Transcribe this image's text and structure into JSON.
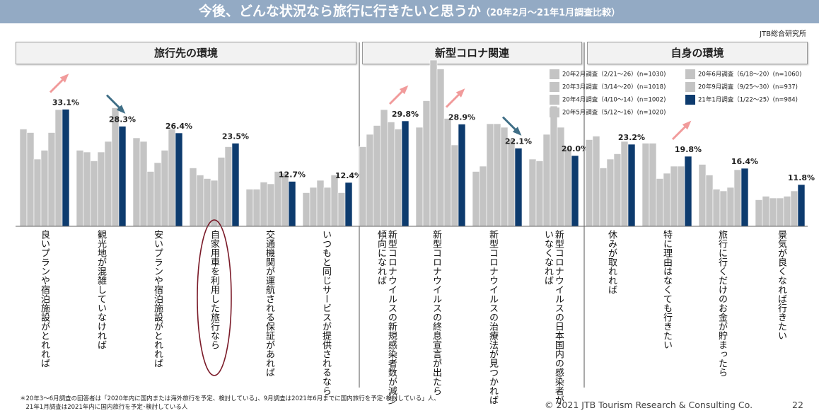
{
  "header": {
    "title": "今後、どんな状況なら旅行に行きたいと思うか",
    "subtitle": "（20年2月～21年1月調査比較）",
    "source": "JTB総合研究所"
  },
  "sections": [
    "旅行先の環境",
    "新型コロナ関連",
    "自身の環境"
  ],
  "legend": [
    {
      "label": "20年2月調査（2/21～26）(n=1030)",
      "color": "#c4c4c4"
    },
    {
      "label": "20年3月調査（3/14～20）(n=1018)",
      "color": "#c4c4c4"
    },
    {
      "label": "20年4月調査（4/10～14）(n=1002)",
      "color": "#c4c4c4"
    },
    {
      "label": "20年5月調査（5/12～16）(n=1020)",
      "color": "#c4c4c4"
    },
    {
      "label": "20年6月調査（6/18～20）(n=1060)",
      "color": "#c4c4c4"
    },
    {
      "label": "20年9月調査（9/25～30）(n=937)",
      "color": "#c4c4c4"
    },
    {
      "label": "21年1月調査（1/22～25）(n=984)",
      "color": "#0d3b6e"
    }
  ],
  "chart_data": {
    "type": "bar",
    "ylim": [
      0,
      50
    ],
    "series_names": [
      "20年2月調査（2/21～26）(n=1030)",
      "20年3月調査（3/14～20）(n=1018)",
      "20年4月調査（4/10～14）(n=1002)",
      "20年5月調査（5/12～16）(n=1020)",
      "20年6月調査（6/18～20）(n=1060)",
      "20年9月調査（9/25～30）(n=937)",
      "21年1月調査（1/22～25）(n=984)"
    ],
    "groups": [
      {
        "label": "良いプランや宿泊施設がとれれば",
        "values": [
          27.5,
          26.5,
          19.0,
          21.5,
          26.5,
          33.0,
          33.1
        ],
        "value_label": "33.1%",
        "arrow": "up"
      },
      {
        "label": "観光地が混雑していなければ",
        "values": [
          21.5,
          21.0,
          18.5,
          21.0,
          24.0,
          33.5,
          28.3
        ],
        "value_label": "28.3%",
        "arrow": "down"
      },
      {
        "label": "安いプランや宿泊施設がとれれば",
        "values": [
          25.0,
          24.0,
          15.5,
          18.0,
          21.5,
          27.5,
          26.4
        ],
        "value_label": "26.4%",
        "arrow": "none"
      },
      {
        "label": "自家用車を利用した旅行なら",
        "values": [
          16.5,
          14.5,
          13.5,
          13.0,
          19.5,
          22.5,
          23.5
        ],
        "value_label": "23.5%",
        "arrow": "none",
        "circled": true
      },
      {
        "label": "交通機関が運航される保証があれば",
        "values": [
          10.5,
          10.5,
          12.5,
          12.0,
          15.5,
          15.0,
          12.7
        ],
        "value_label": "12.7%",
        "arrow": "none"
      },
      {
        "label": "いつもと同じサービスが提供されるなら",
        "values": [
          9.5,
          11.0,
          13.0,
          11.0,
          14.5,
          9.5,
          12.4
        ],
        "value_label": "12.4%",
        "arrow": "none"
      },
      {
        "label": "新型コロナウイルスの新規感染者数が減少傾向になれば",
        "values": [
          22.5,
          26.0,
          28.5,
          33.0,
          29.5,
          27.5,
          29.8
        ],
        "value_label": "29.8%",
        "arrow": "up"
      },
      {
        "label": "新型コロナウイルスの終息宣言が出たら",
        "values": [
          28.0,
          35.5,
          47.0,
          44.5,
          30.5,
          23.0,
          28.9
        ],
        "value_label": "28.9%",
        "arrow": "up"
      },
      {
        "label": "新型コロナウイルスの治療法が見つかれば",
        "values": [
          15.5,
          17.0,
          29.0,
          29.0,
          28.0,
          24.5,
          22.1
        ],
        "value_label": "22.1%",
        "arrow": "down"
      },
      {
        "label": "新型コロナウイルスの日本国内の感染者がいなくなれば",
        "values": [
          19.0,
          18.5,
          26.0,
          34.0,
          28.0,
          22.0,
          20.0
        ],
        "value_label": "20.0%",
        "arrow": "none"
      },
      {
        "label": "休みが取れれば",
        "values": [
          24.5,
          25.5,
          16.5,
          19.0,
          20.5,
          24.0,
          23.2
        ],
        "value_label": "23.2%",
        "arrow": "none"
      },
      {
        "label": "特に理由はなくても行きたい",
        "values": [
          23.5,
          23.5,
          13.5,
          15.0,
          17.0,
          17.0,
          19.8
        ],
        "value_label": "19.8%",
        "arrow": "up"
      },
      {
        "label": "旅行に行くだけのお金が貯まったら",
        "values": [
          17.5,
          14.5,
          10.5,
          10.0,
          11.0,
          16.0,
          16.4
        ],
        "value_label": "16.4%",
        "arrow": "none"
      },
      {
        "label": "景気が良くなれば行きたい",
        "values": [
          7.5,
          8.5,
          8.0,
          8.0,
          8.5,
          10.0,
          11.8
        ],
        "value_label": "11.8%",
        "arrow": "none"
      }
    ]
  },
  "colors": {
    "past_bar": "#c4c4c4",
    "latest_bar": "#0d3b6e",
    "arrow_up": "#f19b9b",
    "arrow_down": "#3f6e86",
    "circle": "#7a1a28"
  },
  "footnote": [
    "＊20年3～6月調査の回答者は「2020年内に国内または海外旅行を予定、検討している」、9月調査は2021年6月までに国内旅行を予定･検討している」人、",
    "　21年1月調査は2021年内に国内旅行を予定･検討している人"
  ],
  "copyright": "© 2021 JTB Tourism Research & Consulting Co.",
  "page_number": "22"
}
